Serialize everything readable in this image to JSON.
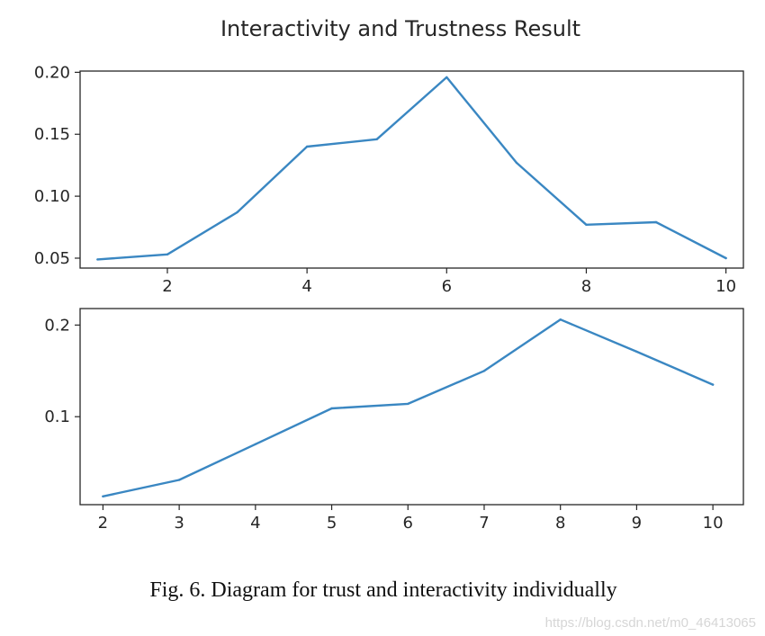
{
  "figure": {
    "caption": "Fig. 6. Diagram for trust and interactivity individually",
    "watermark": "https://blog.csdn.net/m0_46413065"
  },
  "chart_data": {
    "title": "Interactivity and Trustness Result",
    "line_color": "#3a87c2",
    "charts": [
      {
        "type": "line",
        "xlabel": "",
        "ylabel": "",
        "grid": false,
        "x": [
          1,
          2,
          3,
          4,
          5,
          6,
          7,
          8,
          9,
          10
        ],
        "values": [
          0.049,
          0.053,
          0.087,
          0.14,
          0.146,
          0.196,
          0.127,
          0.077,
          0.079,
          0.05
        ],
        "xlim": [
          0.75,
          10.25
        ],
        "ylim": [
          0.042,
          0.201
        ],
        "xticks": [
          2,
          4,
          6,
          8,
          10
        ],
        "xtick_labels": [
          "2",
          "4",
          "6",
          "8",
          "10"
        ],
        "yticks": [
          0.05,
          0.1,
          0.15,
          0.2
        ],
        "ytick_labels": [
          "0.05",
          "0.10",
          "0.15",
          "0.20"
        ]
      },
      {
        "type": "line",
        "xlabel": "",
        "ylabel": "",
        "grid": false,
        "x": [
          2,
          3,
          4,
          5,
          6,
          7,
          8,
          9,
          10
        ],
        "values": [
          0.013,
          0.031,
          0.07,
          0.109,
          0.114,
          0.15,
          0.206,
          0.171,
          0.135
        ],
        "xlim": [
          1.7,
          10.4
        ],
        "ylim": [
          0.004,
          0.218
        ],
        "xticks": [
          2,
          3,
          4,
          5,
          6,
          7,
          8,
          9,
          10
        ],
        "xtick_labels": [
          "2",
          "3",
          "4",
          "5",
          "6",
          "7",
          "8",
          "9",
          "10"
        ],
        "yticks": [
          0.1,
          0.2
        ],
        "ytick_labels": [
          "0.1",
          "0.2"
        ]
      }
    ]
  }
}
